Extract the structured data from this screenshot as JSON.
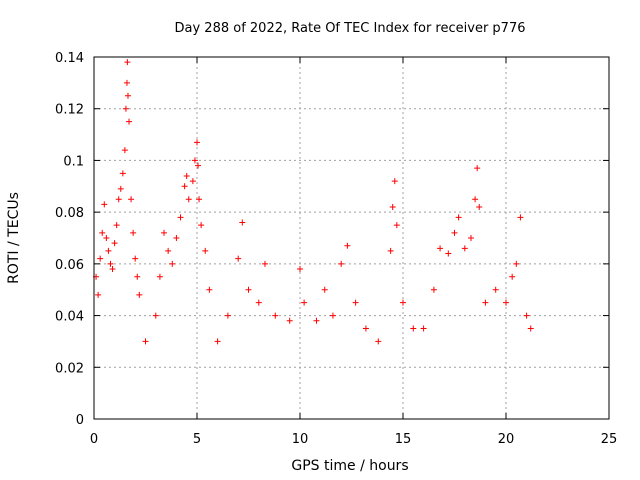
{
  "chart_data": {
    "type": "scatter",
    "title": "Day 288 of 2022, Rate Of TEC Index for receiver p776",
    "xlabel": "GPS time / hours",
    "ylabel": "ROTI / TECUs",
    "xlim": [
      0,
      25
    ],
    "ylim": [
      0,
      0.14
    ],
    "x_ticks": [
      "0",
      "5",
      "10",
      "15",
      "20",
      "25"
    ],
    "y_ticks": [
      "0",
      "0.02",
      "0.04",
      "0.06",
      "0.08",
      "0.1",
      "0.12",
      "0.14"
    ],
    "grid": true,
    "marker": "plus",
    "marker_color": "#ff0000",
    "series": [
      {
        "points": [
          [
            0.1,
            0.055
          ],
          [
            0.2,
            0.048
          ],
          [
            0.3,
            0.062
          ],
          [
            0.4,
            0.072
          ],
          [
            0.5,
            0.083
          ],
          [
            0.6,
            0.07
          ],
          [
            0.7,
            0.065
          ],
          [
            0.8,
            0.06
          ],
          [
            0.9,
            0.058
          ],
          [
            1.0,
            0.068
          ],
          [
            1.1,
            0.075
          ],
          [
            1.2,
            0.085
          ],
          [
            1.3,
            0.089
          ],
          [
            1.4,
            0.095
          ],
          [
            1.5,
            0.104
          ],
          [
            1.55,
            0.12
          ],
          [
            1.6,
            0.13
          ],
          [
            1.62,
            0.138
          ],
          [
            1.65,
            0.125
          ],
          [
            1.7,
            0.115
          ],
          [
            1.8,
            0.085
          ],
          [
            1.9,
            0.072
          ],
          [
            2.0,
            0.062
          ],
          [
            2.1,
            0.055
          ],
          [
            2.2,
            0.048
          ],
          [
            2.5,
            0.03
          ],
          [
            3.0,
            0.04
          ],
          [
            3.2,
            0.055
          ],
          [
            3.4,
            0.072
          ],
          [
            3.6,
            0.065
          ],
          [
            3.8,
            0.06
          ],
          [
            4.0,
            0.07
          ],
          [
            4.2,
            0.078
          ],
          [
            4.4,
            0.09
          ],
          [
            4.5,
            0.094
          ],
          [
            4.6,
            0.085
          ],
          [
            4.8,
            0.092
          ],
          [
            4.9,
            0.1
          ],
          [
            5.0,
            0.107
          ],
          [
            5.05,
            0.098
          ],
          [
            5.1,
            0.085
          ],
          [
            5.2,
            0.075
          ],
          [
            5.4,
            0.065
          ],
          [
            5.6,
            0.05
          ],
          [
            6.0,
            0.03
          ],
          [
            6.5,
            0.04
          ],
          [
            7.0,
            0.062
          ],
          [
            7.2,
            0.076
          ],
          [
            7.5,
            0.05
          ],
          [
            8.0,
            0.045
          ],
          [
            8.3,
            0.06
          ],
          [
            8.8,
            0.04
          ],
          [
            9.5,
            0.038
          ],
          [
            10.0,
            0.058
          ],
          [
            10.2,
            0.045
          ],
          [
            10.8,
            0.038
          ],
          [
            11.2,
            0.05
          ],
          [
            11.6,
            0.04
          ],
          [
            12.0,
            0.06
          ],
          [
            12.3,
            0.067
          ],
          [
            12.7,
            0.045
          ],
          [
            13.2,
            0.035
          ],
          [
            13.8,
            0.03
          ],
          [
            14.4,
            0.065
          ],
          [
            14.5,
            0.082
          ],
          [
            14.6,
            0.092
          ],
          [
            14.7,
            0.075
          ],
          [
            15.0,
            0.045
          ],
          [
            15.5,
            0.035
          ],
          [
            16.0,
            0.035
          ],
          [
            16.5,
            0.05
          ],
          [
            16.8,
            0.066
          ],
          [
            17.2,
            0.064
          ],
          [
            17.5,
            0.072
          ],
          [
            17.7,
            0.078
          ],
          [
            18.0,
            0.066
          ],
          [
            18.3,
            0.07
          ],
          [
            18.5,
            0.085
          ],
          [
            18.6,
            0.097
          ],
          [
            18.7,
            0.082
          ],
          [
            19.0,
            0.045
          ],
          [
            19.5,
            0.05
          ],
          [
            20.0,
            0.045
          ],
          [
            20.3,
            0.055
          ],
          [
            20.5,
            0.06
          ],
          [
            20.7,
            0.078
          ],
          [
            21.0,
            0.04
          ],
          [
            21.2,
            0.035
          ]
        ]
      }
    ]
  }
}
